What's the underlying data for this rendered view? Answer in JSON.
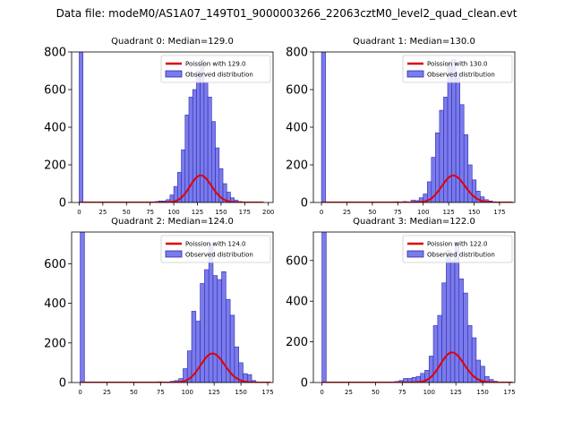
{
  "figure": {
    "suptitle": "Data file: modeM0/AS1A07_149T01_9000003266_22063cztM0_level2_quad_clean.evt",
    "colors": {
      "bar_fill": "#7b7bea",
      "bar_edge": "#2b2bb8",
      "line": "#e00000"
    }
  },
  "chart_data": [
    {
      "type": "bar",
      "title": "Quadrant 0: Median=129.0",
      "ylim": [
        0,
        800
      ],
      "xlim": [
        -8,
        205
      ],
      "yticks": [
        0,
        200,
        400,
        600,
        800
      ],
      "xticks": [
        0,
        25,
        50,
        75,
        100,
        125,
        150,
        175,
        200
      ],
      "median": 129.0,
      "legend": {
        "line_label": "Poission with 129.0",
        "bar_label": "Observed distribution"
      },
      "bin_width": 4,
      "bins": [
        {
          "x": 0,
          "y": 800
        },
        {
          "x": 80,
          "y": 5
        },
        {
          "x": 84,
          "y": 8
        },
        {
          "x": 88,
          "y": 8
        },
        {
          "x": 92,
          "y": 15
        },
        {
          "x": 96,
          "y": 40
        },
        {
          "x": 100,
          "y": 85
        },
        {
          "x": 104,
          "y": 160
        },
        {
          "x": 108,
          "y": 280
        },
        {
          "x": 112,
          "y": 465
        },
        {
          "x": 116,
          "y": 560
        },
        {
          "x": 120,
          "y": 600
        },
        {
          "x": 124,
          "y": 700
        },
        {
          "x": 128,
          "y": 760
        },
        {
          "x": 132,
          "y": 640
        },
        {
          "x": 136,
          "y": 560
        },
        {
          "x": 140,
          "y": 430
        },
        {
          "x": 144,
          "y": 290
        },
        {
          "x": 148,
          "y": 180
        },
        {
          "x": 152,
          "y": 100
        },
        {
          "x": 156,
          "y": 55
        },
        {
          "x": 160,
          "y": 25
        },
        {
          "x": 164,
          "y": 12
        },
        {
          "x": 168,
          "y": 5
        }
      ],
      "curve": {
        "mean": 129.0,
        "scale": 4096,
        "x_range": [
          0,
          195
        ]
      }
    },
    {
      "type": "bar",
      "title": "Quadrant 1: Median=130.0",
      "ylim": [
        0,
        800
      ],
      "xlim": [
        -8,
        190
      ],
      "yticks": [
        0,
        200,
        400,
        600,
        800
      ],
      "xticks": [
        0,
        25,
        50,
        75,
        100,
        125,
        150,
        175
      ],
      "median": 130.0,
      "legend": {
        "line_label": "Poission with 130.0",
        "bar_label": "Observed distribution"
      },
      "bin_width": 4,
      "bins": [
        {
          "x": 0,
          "y": 800
        },
        {
          "x": 72,
          "y": 4
        },
        {
          "x": 80,
          "y": 5
        },
        {
          "x": 88,
          "y": 12
        },
        {
          "x": 92,
          "y": 10
        },
        {
          "x": 96,
          "y": 25
        },
        {
          "x": 100,
          "y": 45
        },
        {
          "x": 104,
          "y": 110
        },
        {
          "x": 108,
          "y": 240
        },
        {
          "x": 112,
          "y": 370
        },
        {
          "x": 116,
          "y": 490
        },
        {
          "x": 120,
          "y": 560
        },
        {
          "x": 124,
          "y": 740
        },
        {
          "x": 128,
          "y": 760
        },
        {
          "x": 132,
          "y": 690
        },
        {
          "x": 136,
          "y": 520
        },
        {
          "x": 140,
          "y": 360
        },
        {
          "x": 144,
          "y": 200
        },
        {
          "x": 148,
          "y": 120
        },
        {
          "x": 152,
          "y": 60
        },
        {
          "x": 156,
          "y": 30
        },
        {
          "x": 160,
          "y": 15
        },
        {
          "x": 164,
          "y": 8
        }
      ],
      "curve": {
        "mean": 130.0,
        "scale": 4096,
        "x_range": [
          0,
          188
        ]
      }
    },
    {
      "type": "bar",
      "title": "Quadrant 2: Median=124.0",
      "ylim": [
        0,
        760
      ],
      "xlim": [
        -8,
        180
      ],
      "yticks": [
        0,
        200,
        400,
        600
      ],
      "xticks": [
        0,
        25,
        50,
        75,
        100,
        125,
        150,
        175
      ],
      "median": 124.0,
      "legend": {
        "line_label": "Poission with 124.0",
        "bar_label": "Observed distribution"
      },
      "bin_width": 4,
      "bins": [
        {
          "x": 0,
          "y": 760
        },
        {
          "x": 72,
          "y": 4
        },
        {
          "x": 84,
          "y": 6
        },
        {
          "x": 88,
          "y": 10
        },
        {
          "x": 92,
          "y": 20
        },
        {
          "x": 96,
          "y": 70
        },
        {
          "x": 100,
          "y": 160
        },
        {
          "x": 104,
          "y": 360
        },
        {
          "x": 108,
          "y": 310
        },
        {
          "x": 112,
          "y": 500
        },
        {
          "x": 116,
          "y": 570
        },
        {
          "x": 120,
          "y": 700
        },
        {
          "x": 124,
          "y": 540
        },
        {
          "x": 128,
          "y": 520
        },
        {
          "x": 132,
          "y": 560
        },
        {
          "x": 136,
          "y": 420
        },
        {
          "x": 140,
          "y": 340
        },
        {
          "x": 144,
          "y": 180
        },
        {
          "x": 148,
          "y": 100
        },
        {
          "x": 152,
          "y": 45
        },
        {
          "x": 156,
          "y": 40
        },
        {
          "x": 160,
          "y": 10
        }
      ],
      "curve": {
        "mean": 124.0,
        "scale": 4096,
        "x_range": [
          0,
          178
        ]
      }
    },
    {
      "type": "bar",
      "title": "Quadrant 3: Median=122.0",
      "ylim": [
        0,
        740
      ],
      "xlim": [
        -8,
        180
      ],
      "yticks": [
        0,
        200,
        400,
        600
      ],
      "xticks": [
        0,
        25,
        50,
        75,
        100,
        125,
        150,
        175
      ],
      "median": 122.0,
      "legend": {
        "line_label": "Poission with 122.0",
        "bar_label": "Observed distribution"
      },
      "bin_width": 4,
      "bins": [
        {
          "x": 0,
          "y": 740
        },
        {
          "x": 60,
          "y": 3
        },
        {
          "x": 68,
          "y": 5
        },
        {
          "x": 72,
          "y": 10
        },
        {
          "x": 76,
          "y": 20
        },
        {
          "x": 80,
          "y": 20
        },
        {
          "x": 84,
          "y": 25
        },
        {
          "x": 88,
          "y": 30
        },
        {
          "x": 92,
          "y": 45
        },
        {
          "x": 96,
          "y": 60
        },
        {
          "x": 100,
          "y": 130
        },
        {
          "x": 104,
          "y": 280
        },
        {
          "x": 108,
          "y": 330
        },
        {
          "x": 112,
          "y": 490
        },
        {
          "x": 116,
          "y": 650
        },
        {
          "x": 120,
          "y": 600
        },
        {
          "x": 124,
          "y": 690
        },
        {
          "x": 128,
          "y": 510
        },
        {
          "x": 132,
          "y": 440
        },
        {
          "x": 136,
          "y": 280
        },
        {
          "x": 140,
          "y": 220
        },
        {
          "x": 144,
          "y": 110
        },
        {
          "x": 148,
          "y": 80
        },
        {
          "x": 152,
          "y": 30
        },
        {
          "x": 156,
          "y": 15
        },
        {
          "x": 160,
          "y": 6
        }
      ],
      "curve": {
        "mean": 122.0,
        "scale": 4096,
        "x_range": [
          0,
          178
        ]
      }
    }
  ]
}
